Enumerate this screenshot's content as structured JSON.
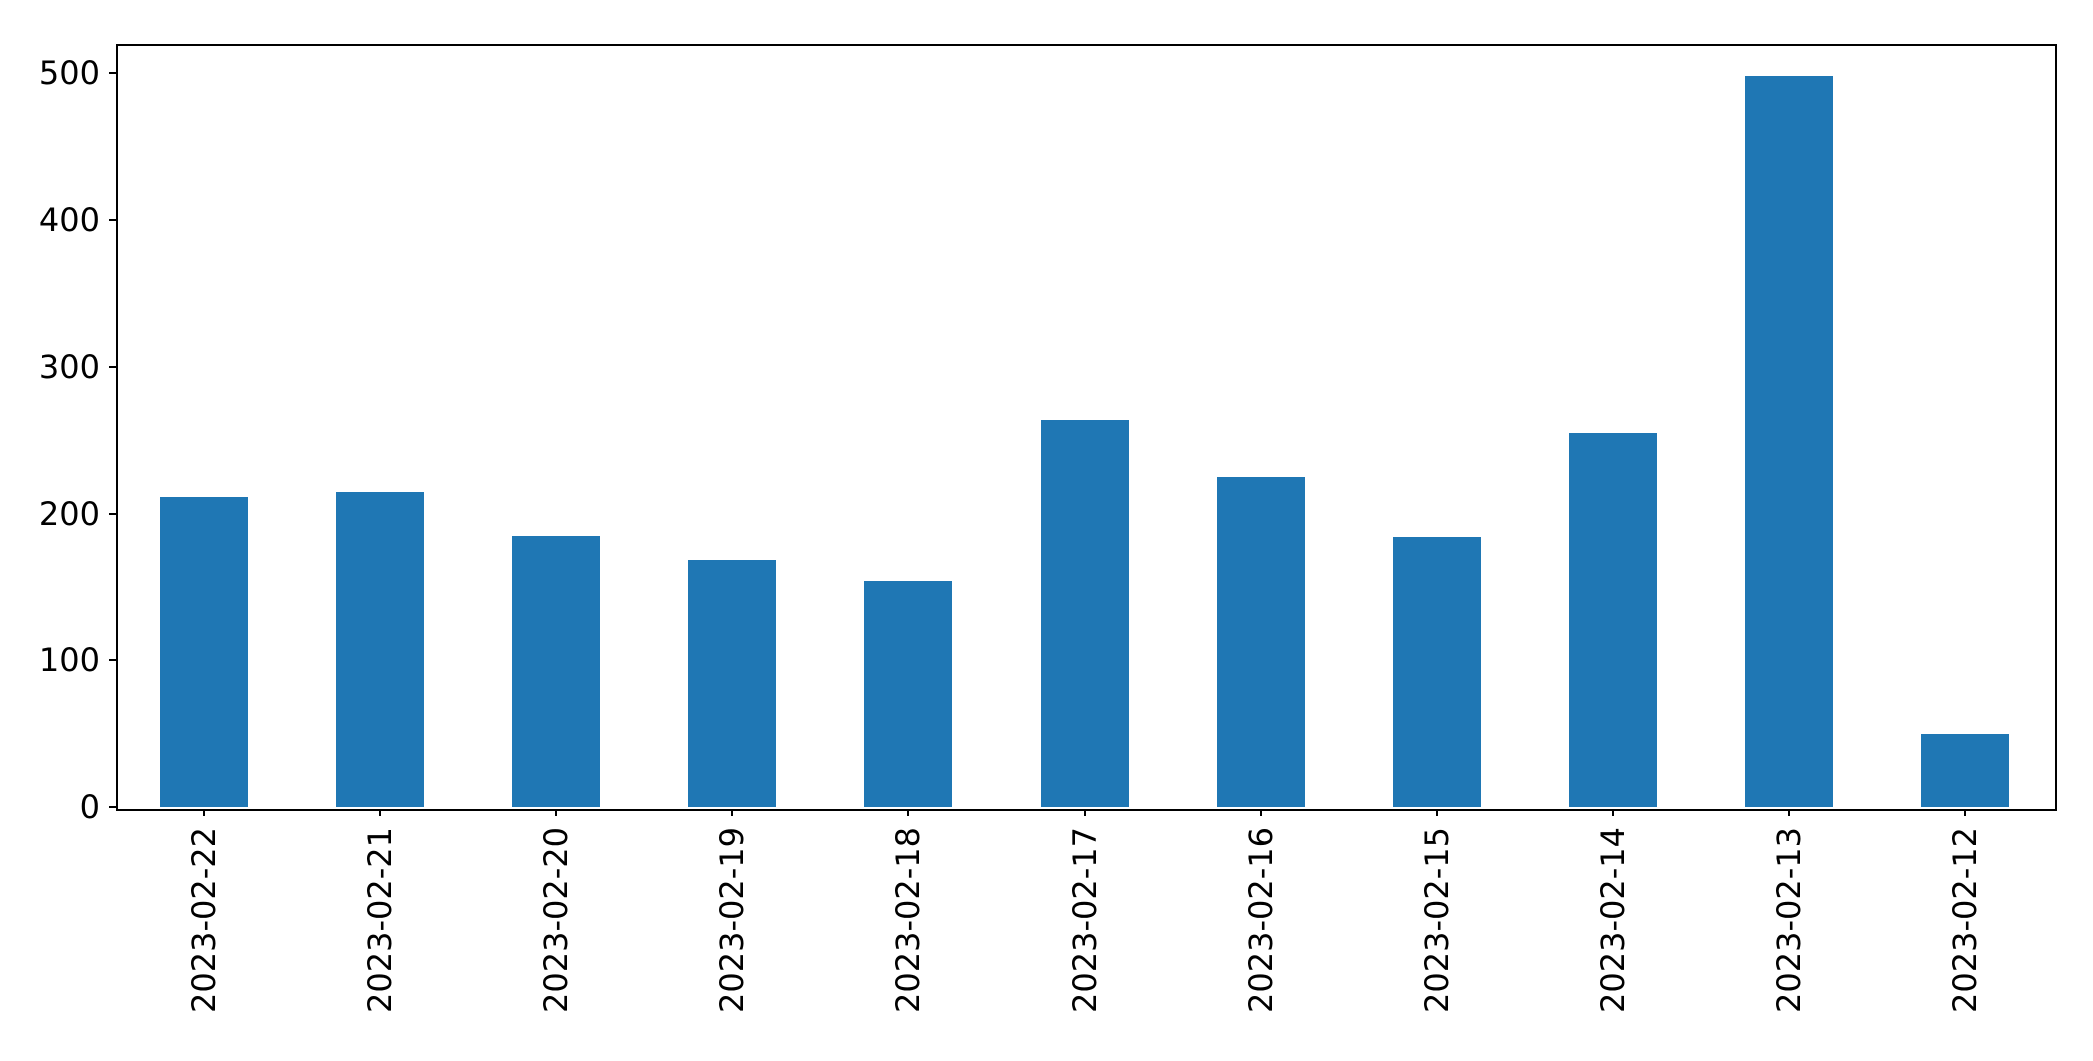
{
  "chart_data": {
    "type": "bar",
    "title": "",
    "xlabel": "",
    "ylabel": "",
    "categories": [
      "2023-02-22",
      "2023-02-21",
      "2023-02-20",
      "2023-02-19",
      "2023-02-18",
      "2023-02-17",
      "2023-02-16",
      "2023-02-15",
      "2023-02-14",
      "2023-02-13",
      "2023-02-12"
    ],
    "values": [
      211,
      215,
      185,
      168,
      154,
      264,
      225,
      184,
      255,
      498,
      50
    ],
    "y_tick_labels": [
      "0",
      "100",
      "200",
      "300",
      "400",
      "500"
    ],
    "y_ticks": [
      0,
      100,
      200,
      300,
      400,
      500
    ],
    "ylim": [
      0,
      520
    ],
    "grid": false,
    "legend": null,
    "x_tick_rotation_deg": 90,
    "colors": {
      "bar": "#1f77b4",
      "axis": "#000000",
      "background": "#ffffff"
    }
  }
}
